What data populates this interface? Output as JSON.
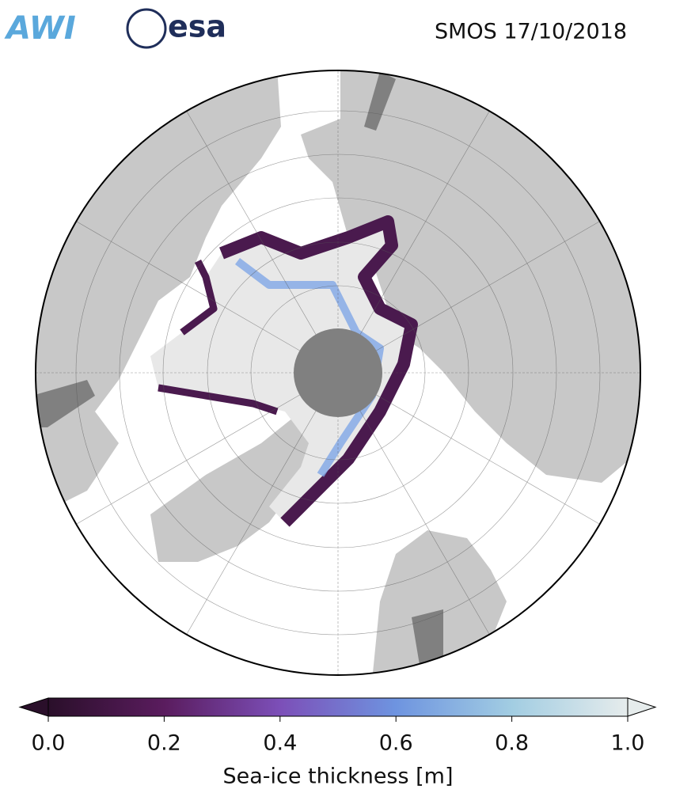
{
  "logos": [
    "AWI",
    "esa"
  ],
  "title": "SMOS 17/10/2018",
  "colorbar": {
    "label": "Sea-ice thickness [m]",
    "lim": [
      0,
      1
    ],
    "ticks": [
      {
        "value": 0,
        "label": "0.0"
      },
      0.2,
      0.4,
      0.6,
      0.8,
      {
        "value": 1,
        "label": "1.0"
      }
    ],
    "colors": [
      "#2a0f2a",
      "#5a1c5e",
      "#7c4fb8",
      "#6e94e0",
      "#a2cde2",
      "#e6ecec"
    ]
  }
}
